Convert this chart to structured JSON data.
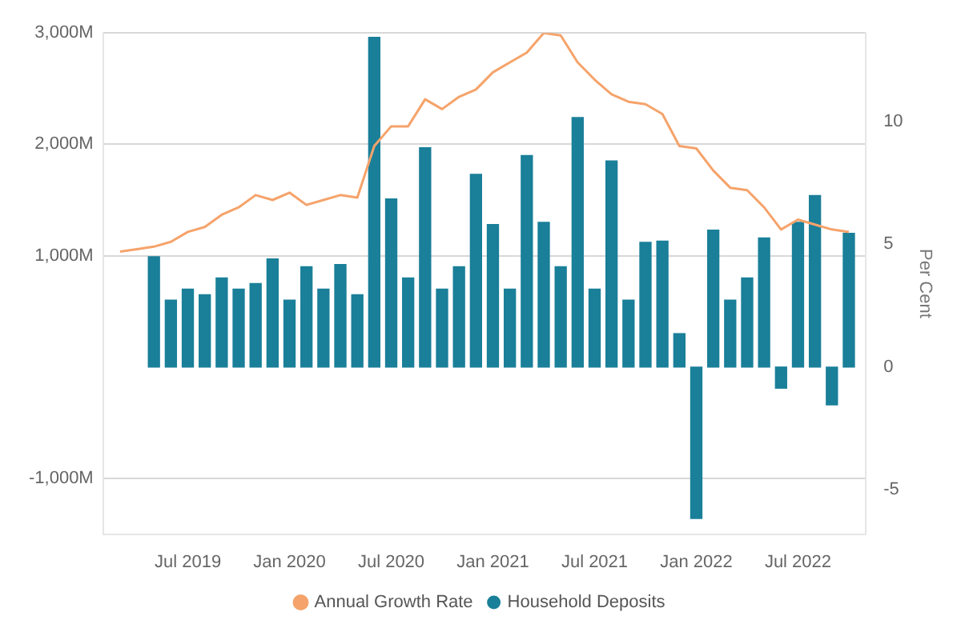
{
  "chart_data": {
    "type": "bar",
    "x": [
      "2019-03",
      "2019-04",
      "2019-05",
      "2019-06",
      "2019-07",
      "2019-08",
      "2019-09",
      "2019-10",
      "2019-11",
      "2019-12",
      "2020-01",
      "2020-02",
      "2020-03",
      "2020-04",
      "2020-05",
      "2020-06",
      "2020-07",
      "2020-08",
      "2020-09",
      "2020-10",
      "2020-11",
      "2020-12",
      "2021-01",
      "2021-02",
      "2021-03",
      "2021-04",
      "2021-05",
      "2021-06",
      "2021-07",
      "2021-08",
      "2021-09",
      "2021-10",
      "2021-11",
      "2021-12",
      "2022-01",
      "2022-02",
      "2022-03",
      "2022-04",
      "2022-05",
      "2022-06",
      "2022-07",
      "2022-08",
      "2022-09",
      "2022-10"
    ],
    "series": [
      {
        "name": "Household Deposits",
        "color": "#1a7f99",
        "values": [
          null,
          null,
          990,
          600,
          700,
          650,
          800,
          700,
          750,
          970,
          600,
          900,
          700,
          920,
          650,
          2960,
          1510,
          800,
          1970,
          700,
          900,
          1730,
          1280,
          700,
          1900,
          1300,
          900,
          2240,
          700,
          1850,
          600,
          1120,
          1130,
          300,
          -1360,
          1230,
          600,
          800,
          1160,
          -190,
          1300,
          1540,
          -340,
          1200
        ]
      },
      {
        "name": "Annual Growth Rate",
        "type": "line",
        "axis": "y2",
        "color": "#f5a36b",
        "values": [
          4.7,
          4.8,
          4.9,
          5.1,
          5.5,
          5.7,
          6.2,
          6.5,
          7.0,
          6.8,
          7.1,
          6.6,
          6.8,
          7.0,
          6.9,
          9.0,
          9.8,
          9.8,
          10.9,
          10.5,
          11.0,
          11.3,
          12.0,
          12.4,
          12.8,
          13.6,
          13.5,
          12.4,
          11.7,
          11.1,
          10.8,
          10.7,
          10.3,
          9.0,
          8.9,
          8.0,
          7.3,
          7.2,
          6.5,
          5.6,
          6.0,
          5.8,
          5.6,
          5.5
        ]
      }
    ],
    "xticks": [
      {
        "value": "2019-07",
        "label": "Jul 2019"
      },
      {
        "value": "2020-01",
        "label": "Jan 2020"
      },
      {
        "value": "2020-07",
        "label": "Jul 2020"
      },
      {
        "value": "2021-01",
        "label": "Jan 2021"
      },
      {
        "value": "2021-07",
        "label": "Jul 2021"
      },
      {
        "value": "2022-01",
        "label": "Jan 2022"
      },
      {
        "value": "2022-07",
        "label": "Jul 2022"
      }
    ],
    "xlim": [
      "2019-02",
      "2022-11"
    ],
    "ylim": [
      -1500,
      3000
    ],
    "yticks": [
      {
        "value": -1000,
        "label": "-1,000M"
      },
      {
        "value": 1000,
        "label": "1,000M"
      },
      {
        "value": 2000,
        "label": "2,000M"
      },
      {
        "value": 3000,
        "label": "3,000M"
      }
    ],
    "y2lim": [
      -6.8,
      13.6
    ],
    "y2ticks": [
      -5,
      0,
      5,
      10
    ],
    "y2label": "Per Cent",
    "grid": "y",
    "legend": "bottom",
    "marker": "none",
    "line_style": "solid"
  }
}
